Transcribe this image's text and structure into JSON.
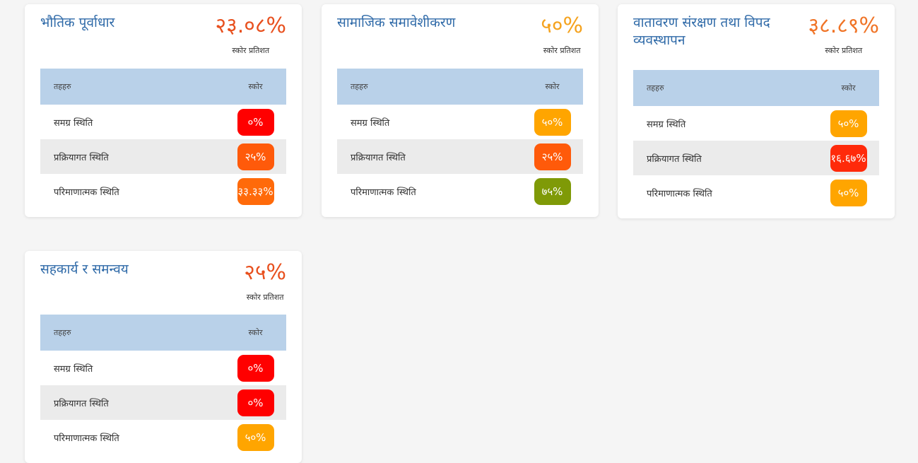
{
  "score_label": "स्कोर प्रतिशत",
  "table_header": {
    "indicator": "तहहरु",
    "score": "स्कोर"
  },
  "cards": [
    {
      "title": "भौतिक पूर्वाधार",
      "score": "२३.०८%",
      "score_color": "#e8501e",
      "rows": [
        {
          "label": "समग्र स्थिति",
          "score": "०%",
          "color": "#ff0000"
        },
        {
          "label": "प्रक्रियागत स्थिति",
          "score": "२५%",
          "color": "#ff5a0a"
        },
        {
          "label": "परिमाणात्मक स्थिति",
          "score": "३३.३३%",
          "color": "#ff6a0a"
        }
      ]
    },
    {
      "title": "सामाजिक समावेशीकरण",
      "score": "५०%",
      "score_color": "#f5a31f",
      "rows": [
        {
          "label": "समग्र स्थिति",
          "score": "५०%",
          "color": "#ffa500"
        },
        {
          "label": "प्रक्रियागत स्थिति",
          "score": "२५%",
          "color": "#ff5a0a"
        },
        {
          "label": "परिमाणात्मक स्थिति",
          "score": "७५%",
          "color": "#7f9a07"
        }
      ]
    },
    {
      "title": "वातावरण संरक्षण तथा विपद व्यवस्थापन",
      "score": "३८.८९%",
      "score_color": "#f07427",
      "rows": [
        {
          "label": "समग्र स्थिति",
          "score": "५०%",
          "color": "#ffa500"
        },
        {
          "label": "प्रक्रियागत स्थिति",
          "score": "१६.६७%",
          "color": "#ff2a0a"
        },
        {
          "label": "परिमाणात्मक स्थिति",
          "score": "५०%",
          "color": "#ffa500"
        }
      ]
    },
    {
      "title": "सहकार्य र समन्वय",
      "score": "२५%",
      "score_color": "#e8501e",
      "rows": [
        {
          "label": "समग्र स्थिति",
          "score": "०%",
          "color": "#ff0000"
        },
        {
          "label": "प्रक्रियागत स्थिति",
          "score": "०%",
          "color": "#ff0000"
        },
        {
          "label": "परिमाणात्मक स्थिति",
          "score": "५०%",
          "color": "#ffa500"
        }
      ]
    }
  ]
}
